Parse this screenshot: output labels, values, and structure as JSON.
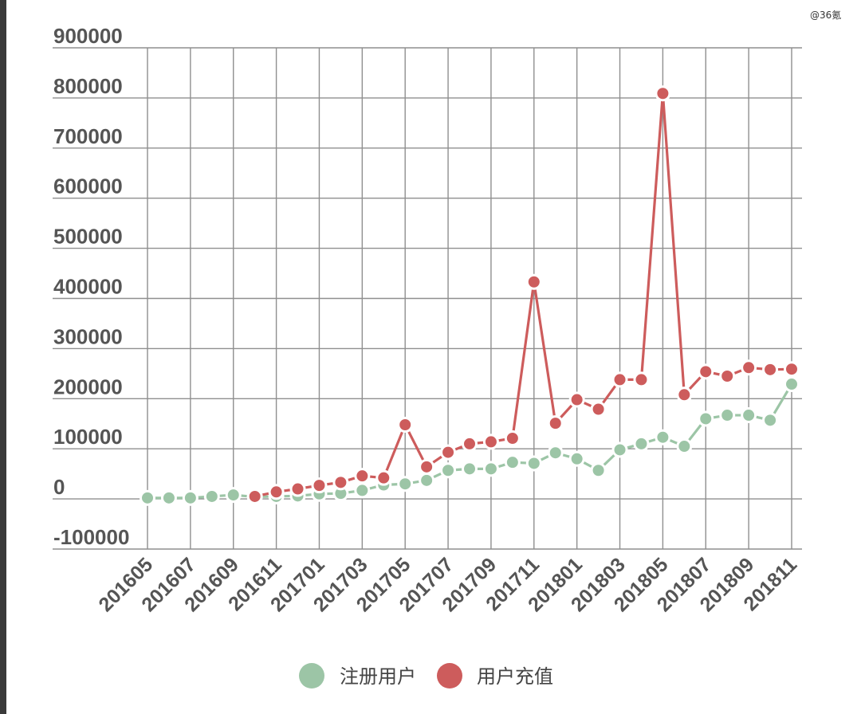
{
  "watermark": "@36氪",
  "chart_data": {
    "type": "line",
    "title": "",
    "xlabel": "",
    "ylabel": "",
    "ylim": [
      -100000,
      900000
    ],
    "yticks": [
      900000,
      800000,
      700000,
      600000,
      500000,
      400000,
      300000,
      200000,
      100000,
      0,
      -100000
    ],
    "x": [
      "201605",
      "201606",
      "201607",
      "201608",
      "201609",
      "201610",
      "201611",
      "201612",
      "201701",
      "201702",
      "201703",
      "201704",
      "201705",
      "201706",
      "201707",
      "201708",
      "201709",
      "201710",
      "201711",
      "201712",
      "201801",
      "201802",
      "201803",
      "201804",
      "201805",
      "201806",
      "201807",
      "201808",
      "201809",
      "201810",
      "201811"
    ],
    "xtick_labels": [
      "201605",
      "201607",
      "201609",
      "201611",
      "201701",
      "201703",
      "201705",
      "201707",
      "201709",
      "201711",
      "201801",
      "201803",
      "201805",
      "201807",
      "201809",
      "201811"
    ],
    "grid": true,
    "legend": "bottom",
    "series": [
      {
        "name": "注册用户",
        "color": "#9cc5a6",
        "values": [
          2000,
          2000,
          2000,
          5000,
          8000,
          4000,
          5000,
          6000,
          10000,
          11000,
          17000,
          28000,
          30000,
          37000,
          57000,
          60000,
          60000,
          73000,
          71000,
          92000,
          80000,
          57000,
          98000,
          110000,
          123000,
          105000,
          160000,
          167000,
          167000,
          157000,
          229000
        ]
      },
      {
        "name": "用户充值",
        "color": "#cd5c5c",
        "values": [
          null,
          null,
          null,
          null,
          null,
          5000,
          14000,
          20000,
          27000,
          33000,
          46000,
          42000,
          148000,
          64000,
          93000,
          110000,
          114000,
          121000,
          433000,
          151000,
          198000,
          179000,
          238000,
          238000,
          809000,
          208000,
          254000,
          245000,
          262000,
          258000,
          259000
        ]
      }
    ]
  }
}
